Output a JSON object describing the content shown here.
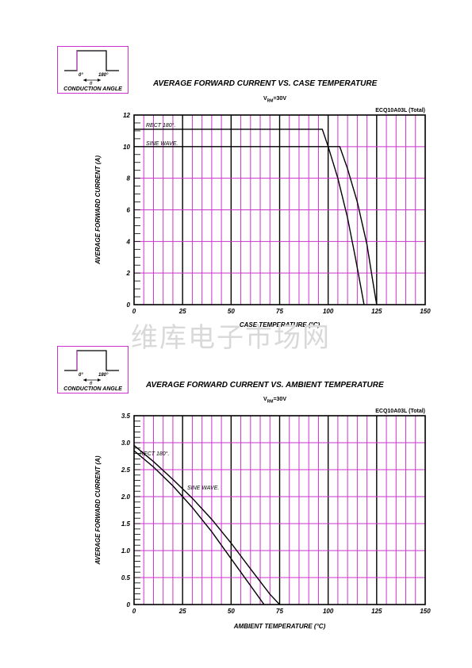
{
  "conduction_angle": {
    "label_0": "0°",
    "label_180": "180°",
    "theta": "θ",
    "caption": "CONDUCTION ANGLE"
  },
  "watermark": "维库电子市场网",
  "chart_data": [
    {
      "type": "line",
      "title": "AVERAGE FORWARD CURRENT VS. CASE TEMPERATURE",
      "vrm": {
        "main": "V",
        "sub": "RM",
        "value": "=30V"
      },
      "model_label": "ECQ10A03L (Total)",
      "xlabel": "CASE TEMPERATURE (°C)",
      "ylabel": "AVERAGE FORWARD CURRENT (A)",
      "xlim": [
        0,
        150
      ],
      "ylim": [
        0,
        12
      ],
      "x_ticks": [
        "0",
        "25",
        "50",
        "75",
        "100",
        "125",
        "150"
      ],
      "y_ticks": [
        "0",
        "2",
        "4",
        "6",
        "8",
        "10",
        "12"
      ],
      "x_step": 25,
      "y_step": 2,
      "x_minor": 5,
      "y_minor": 0.5,
      "series": [
        {
          "name": "RECT 180°.",
          "x": [
            0,
            97,
            100,
            105,
            110,
            114,
            117,
            118.5
          ],
          "y": [
            11.1,
            11.1,
            10.0,
            8.0,
            5.5,
            3.0,
            1.0,
            0
          ]
        },
        {
          "name": "SINE WAVE.",
          "x": [
            0,
            106,
            110,
            115,
            120,
            123,
            125
          ],
          "y": [
            10.0,
            10.0,
            8.6,
            6.5,
            3.8,
            1.5,
            0
          ]
        }
      ]
    },
    {
      "type": "line",
      "title": "AVERAGE FORWARD CURRENT VS. AMBIENT TEMPERATURE",
      "vrm": {
        "main": "V",
        "sub": "RM",
        "value": "=30V"
      },
      "model_label": "ECQ10A03L (Total)",
      "xlabel": "AMBIENT TEMPERATURE (°C)",
      "ylabel": "AVERAGE FORWARD CURRENT (A)",
      "xlim": [
        0,
        150
      ],
      "ylim": [
        0,
        3.5
      ],
      "x_ticks": [
        "0",
        "25",
        "50",
        "75",
        "100",
        "125",
        "150"
      ],
      "y_ticks": [
        "0",
        "0.5",
        "1.0",
        "1.5",
        "2.0",
        "2.5",
        "3.0",
        "3.5"
      ],
      "x_step": 25,
      "y_step": 0.5,
      "x_minor": 5,
      "y_minor": 0.1,
      "series": [
        {
          "name": "RECT 180°.",
          "x": [
            0,
            10,
            20,
            30,
            40,
            50,
            60,
            67
          ],
          "y": [
            2.85,
            2.55,
            2.2,
            1.8,
            1.35,
            0.85,
            0.35,
            0
          ]
        },
        {
          "name": "SINE WAVE.",
          "x": [
            0,
            10,
            20,
            30,
            40,
            50,
            60,
            70,
            75
          ],
          "y": [
            2.95,
            2.65,
            2.32,
            1.97,
            1.58,
            1.14,
            0.66,
            0.19,
            0
          ]
        }
      ]
    }
  ]
}
